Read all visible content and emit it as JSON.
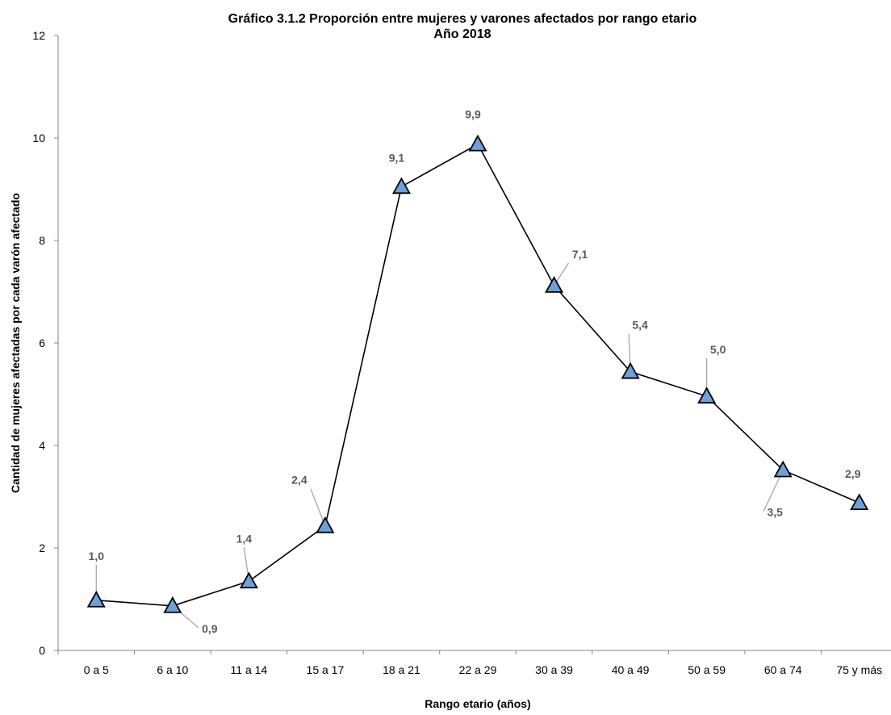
{
  "chart_data": {
    "type": "line",
    "title": "Gráfico 3.1.2 Proporción entre mujeres y varones afectados por rango etario",
    "subtitle": "Año 2018",
    "xlabel": "Rango etario (años)",
    "ylabel": "Cantidad de mujeres afectadas por cada varón afectado",
    "ylim": [
      0,
      12
    ],
    "yticks": [
      0,
      2,
      4,
      6,
      8,
      10,
      12
    ],
    "categories": [
      "0 a 5",
      "6 a 10",
      "11 a 14",
      "15 a 17",
      "18 a 21",
      "22 a 29",
      "30 a 39",
      "40 a 49",
      "50 a 59",
      "60 a 74",
      "75 y más"
    ],
    "values": [
      0.98,
      0.87,
      1.35,
      2.43,
      9.05,
      9.88,
      7.12,
      5.44,
      4.96,
      3.52,
      2.88
    ],
    "data_labels": [
      "1,0",
      "0,9",
      "1,4",
      "2,4",
      "9,1",
      "9,9",
      "7,1",
      "5,4",
      "5,0",
      "3,5",
      "2,9"
    ],
    "grid": false,
    "legend": "none",
    "marker": "triangle",
    "marker_color": "#6FA0D8",
    "line_color": "#000000",
    "label_color": "#595959"
  }
}
